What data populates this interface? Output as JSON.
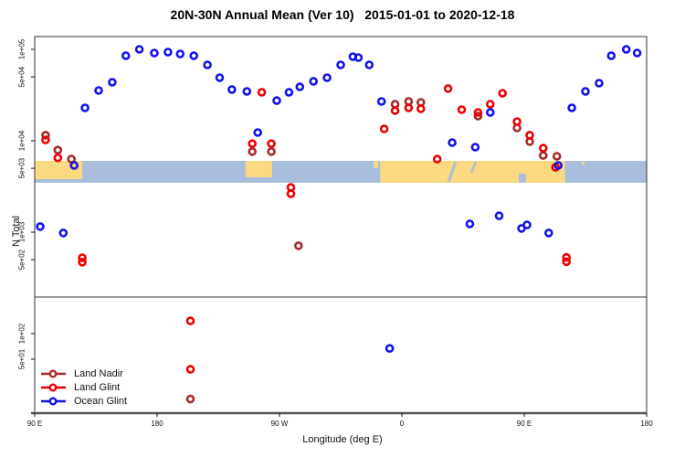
{
  "header": {
    "title": "20N-30N Annual Mean (Ver 10)   2015-01-01 to 2020-12-18"
  },
  "axes": {
    "x": {
      "label": "Longitude (deg E)",
      "ticks": [
        {
          "value": 90,
          "label": "90 E"
        },
        {
          "value": 180,
          "label": "180"
        },
        {
          "value": 270,
          "label": "90 W"
        },
        {
          "value": 360,
          "label": "0"
        },
        {
          "value": 450,
          "label": "90 E"
        },
        {
          "value": 540,
          "label": "180"
        }
      ]
    },
    "y": {
      "label": "N Total",
      "upper_ticks": [
        {
          "value": 100000,
          "label": "1e+05"
        },
        {
          "value": 50000,
          "label": "5e+04"
        },
        {
          "value": 10000,
          "label": "1e+04"
        },
        {
          "value": 5000,
          "label": "5e+03"
        },
        {
          "value": 1000,
          "label": "1e+03"
        },
        {
          "value": 500,
          "label": "5e+02"
        }
      ],
      "lower_ticks": [
        {
          "value": 100,
          "label": "1e+02"
        },
        {
          "value": 50,
          "label": "5e+01"
        }
      ]
    }
  },
  "legend": {
    "items": [
      {
        "label": "Land Nadir",
        "color": "#A52A2A"
      },
      {
        "label": "Land Glint",
        "color": "#EE0000"
      },
      {
        "label": "Ocean Glint",
        "color": "#1212EE"
      }
    ]
  },
  "map_band": {
    "ocean_color": "#A9BEDC",
    "land_color": "#FAD981",
    "land_segments_lon": [
      [
        90,
        125
      ],
      [
        245,
        264.5
      ],
      [
        344,
        480
      ]
    ]
  },
  "chart_data": {
    "type": "scatter",
    "title": "20N-30N Annual Mean (Ver 10)   2015-01-01 to 2020-12-18",
    "xlabel": "Longitude (deg E)",
    "ylabel": "N Total",
    "x_range_deg": [
      90,
      540
    ],
    "y_scale": "log",
    "grid": false,
    "legend_position": "bottom-left",
    "panel_split_value": 250,
    "series": [
      {
        "name": "Land Nadir",
        "color": "#A52A2A",
        "points": [
          [
            98,
            11500
          ],
          [
            107,
            7900
          ],
          [
            117,
            6300
          ],
          [
            250,
            7600
          ],
          [
            264,
            7600
          ],
          [
            284,
            710
          ],
          [
            355,
            25100
          ],
          [
            365,
            26900
          ],
          [
            374,
            26300
          ],
          [
            416,
            18600
          ],
          [
            444.7,
            13800
          ],
          [
            454,
            9800
          ],
          [
            464,
            6900
          ],
          [
            474,
            6760
          ],
          [
            204.5,
            17
          ]
        ]
      },
      {
        "name": "Land Glint",
        "color": "#EE0000",
        "points": [
          [
            98,
            10200
          ],
          [
            107,
            6500
          ],
          [
            125,
            525
          ],
          [
            125,
            470
          ],
          [
            250,
            9300
          ],
          [
            257,
            33900
          ],
          [
            264,
            9300
          ],
          [
            278.4,
            3090
          ],
          [
            278.4,
            2630
          ],
          [
            347,
            13500
          ],
          [
            355,
            21400
          ],
          [
            365,
            22900
          ],
          [
            374,
            22400
          ],
          [
            386,
            6300
          ],
          [
            394,
            37200
          ],
          [
            404,
            21900
          ],
          [
            416,
            20400
          ],
          [
            425,
            25100
          ],
          [
            434,
            33100
          ],
          [
            444.7,
            16200
          ],
          [
            454,
            11500
          ],
          [
            464,
            8300
          ],
          [
            473,
            5130
          ],
          [
            481,
            530
          ],
          [
            481,
            475
          ],
          [
            204.5,
            141
          ],
          [
            204.5,
            38
          ]
        ]
      },
      {
        "name": "Ocean Glint",
        "color": "#1212EE",
        "points": [
          [
            94,
            1150
          ],
          [
            111,
            980
          ],
          [
            119,
            5370
          ],
          [
            127,
            22900
          ],
          [
            137,
            35500
          ],
          [
            147,
            43700
          ],
          [
            157,
            85100
          ],
          [
            167,
            100000
          ],
          [
            178,
            91200
          ],
          [
            188,
            93300
          ],
          [
            197,
            89100
          ],
          [
            207,
            85100
          ],
          [
            217,
            67600
          ],
          [
            226,
            49000
          ],
          [
            235,
            36300
          ],
          [
            246,
            34700
          ],
          [
            254,
            12300
          ],
          [
            268,
            27500
          ],
          [
            277,
            33900
          ],
          [
            285,
            38900
          ],
          [
            295,
            44700
          ],
          [
            305,
            49000
          ],
          [
            315,
            67600
          ],
          [
            324,
            83200
          ],
          [
            328,
            81300
          ],
          [
            336,
            67600
          ],
          [
            345,
            26900
          ],
          [
            397,
            9550
          ],
          [
            410,
            1230
          ],
          [
            414,
            8510
          ],
          [
            425,
            20400
          ],
          [
            431.5,
            1510
          ],
          [
            448,
            1100
          ],
          [
            452,
            1200
          ],
          [
            468,
            980
          ],
          [
            475,
            5370
          ],
          [
            485,
            22900
          ],
          [
            495,
            34700
          ],
          [
            505,
            42700
          ],
          [
            514,
            85100
          ],
          [
            525,
            100000
          ],
          [
            533,
            91200
          ],
          [
            351,
            67
          ]
        ]
      }
    ]
  }
}
